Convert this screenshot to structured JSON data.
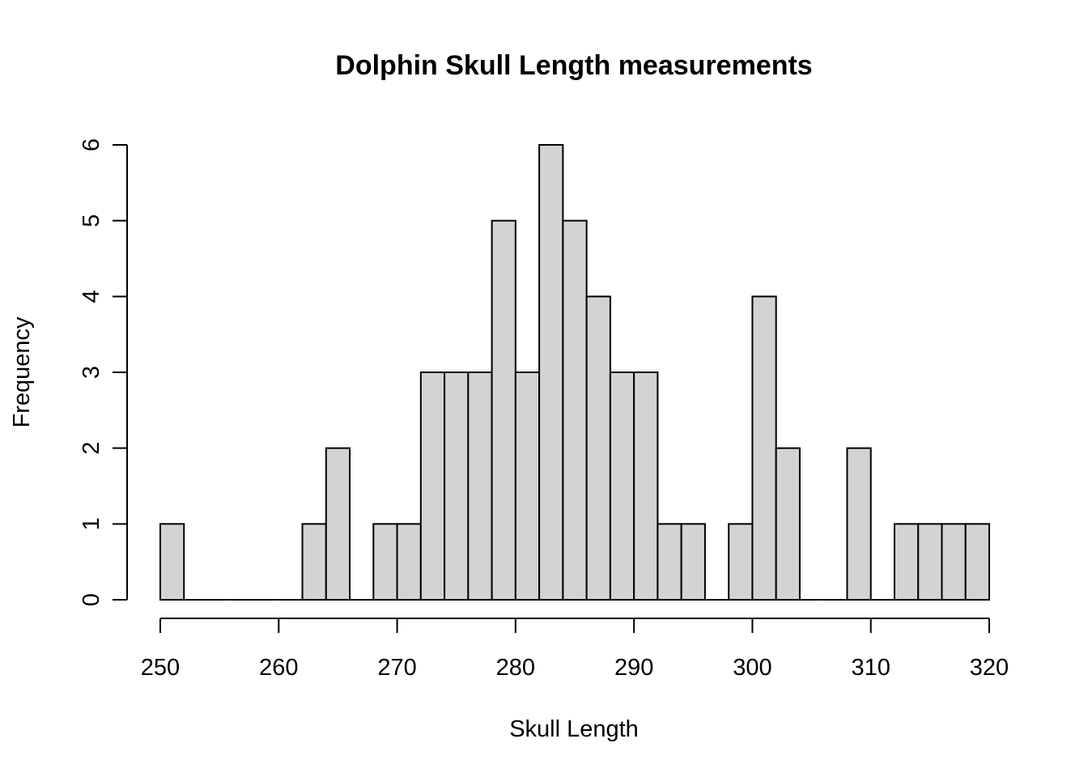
{
  "chart_data": {
    "type": "bar",
    "title": "Dolphin Skull Length measurements",
    "xlabel": "Skull Length",
    "ylabel": "Frequency",
    "bin_width": 2,
    "bin_start": 250,
    "counts": [
      1,
      0,
      0,
      0,
      0,
      0,
      1,
      2,
      0,
      1,
      1,
      3,
      3,
      3,
      5,
      3,
      6,
      5,
      4,
      3,
      3,
      1,
      1,
      0,
      1,
      4,
      2,
      0,
      0,
      2,
      0,
      1,
      1,
      1,
      1
    ],
    "xlim": [
      250,
      320
    ],
    "ylim": [
      0,
      6
    ],
    "x_ticks": [
      250,
      260,
      270,
      280,
      290,
      300,
      310,
      320
    ],
    "y_ticks": [
      0,
      1,
      2,
      3,
      4,
      5,
      6
    ],
    "grid": false,
    "bar_color": "#d3d3d3",
    "edge_color": "#000000"
  }
}
